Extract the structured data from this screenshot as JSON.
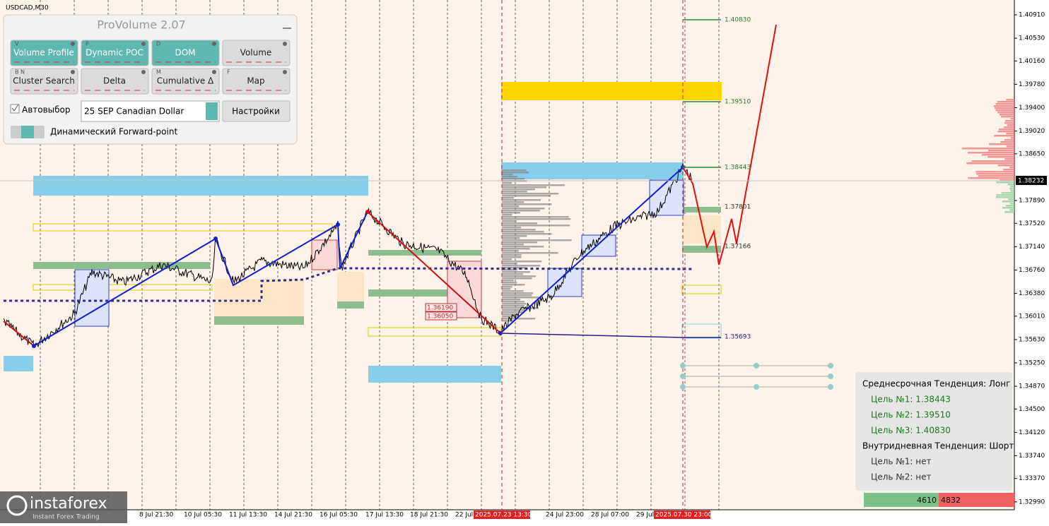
{
  "symbol": "USDCAD,M30",
  "panel": {
    "title": "ProVolume 2.07",
    "buttons": [
      {
        "key": "V",
        "label": "Volume Profile"
      },
      {
        "key": "P",
        "label": "Dynamic POC"
      },
      {
        "key": "D",
        "label": "DOM"
      },
      {
        "label": "Volume"
      },
      {
        "key": "B N",
        "label": "Cluster Search"
      },
      {
        "label": "Delta"
      },
      {
        "key": "M",
        "label": "Cumulative Δ"
      },
      {
        "key": "F",
        "label": "Map"
      }
    ],
    "auto_select": "Автовыбор",
    "instrument": "25 SEP Canadian Dollar",
    "settings": "Настройки",
    "forward_point": "Динамический Forward-point"
  },
  "price_axis": {
    "labels": [
      "1.40910",
      "1.40530",
      "1.40160",
      "1.39780",
      "1.39400",
      "1.39020",
      "1.38650",
      "1.37890",
      "1.37520",
      "1.37140",
      "1.36760",
      "1.36380",
      "1.36010",
      "1.35630",
      "1.35250",
      "1.34870",
      "1.34500",
      "1.34120",
      "1.33740",
      "1.33370",
      "1.32990"
    ],
    "current": "1.38232"
  },
  "time_axis": {
    "labels": [
      "8 Jul 21:30",
      "10 Jul 05:30",
      "11 Jul 13:30",
      "14 Jul 21:30",
      "16 Jul 05:30",
      "17 Jul 13:30",
      "18 Jul 21:30",
      "22 Jul",
      "24 Jul 23:00",
      "28 Jul 07:00",
      "29 Jul"
    ],
    "highlighted": [
      "2025.07.23 13:30",
      "2025.07.30 23:00"
    ]
  },
  "levels": [
    "1.40830",
    "1.39510",
    "1.38443",
    "1.37801",
    "1.37166",
    "1.35693",
    "1.36190",
    "1.36050"
  ],
  "info": {
    "medium": "Среднесрочная Тенденция: Лонг",
    "medium_targets": [
      "Цель №1: 1.38443",
      "Цель №2: 1.39510",
      "Цель №3: 1.40830"
    ],
    "intraday": "Внутридневная Тенденция: Шорт",
    "intraday_targets": [
      "Цель №1: нет",
      "Цель №2: нет"
    ]
  },
  "volume": {
    "buy": "4610",
    "sell": "4832"
  },
  "logo": {
    "name": "instaforex",
    "tagline": "Instant Forex Trading"
  }
}
